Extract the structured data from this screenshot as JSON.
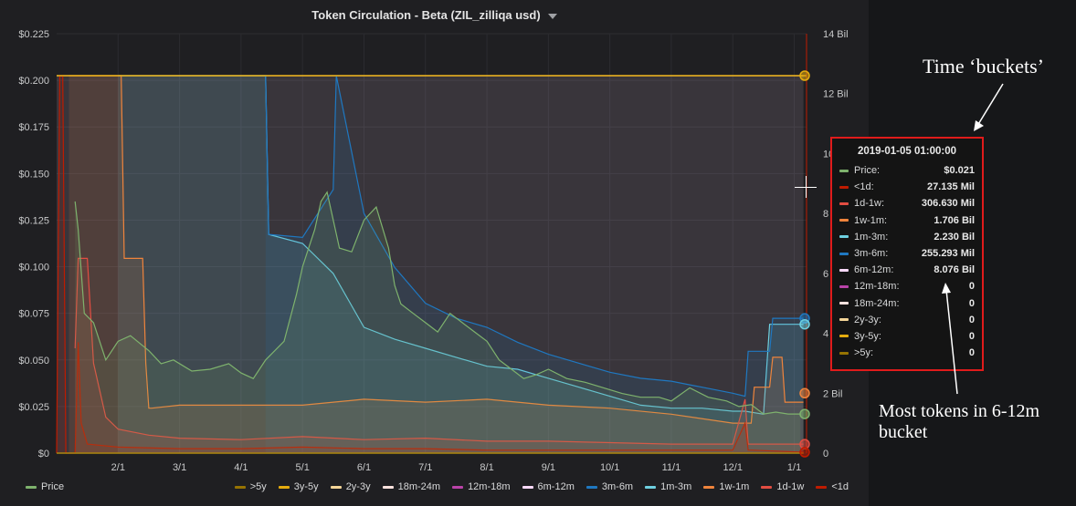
{
  "title": "Token Circulation - Beta (ZIL_zilliqa usd)",
  "colors": {
    "price": "#7eb26d",
    "lt1d": "#bf1b00",
    "d1w1": "#e24d42",
    "w1m1": "#ef843c",
    "m1m3": "#6ed0e0",
    "m3m6": "#1f78c1",
    "m6m12": "#f9d9f9",
    "m12m18": "#ba43a9",
    "m18m24": "#fce2de",
    "y2y3": "#f4d598",
    "y3y5": "#e5ac0e",
    "gt5y": "#967302"
  },
  "legend": {
    "left": [
      {
        "label": "Price",
        "color": "#7eb26d"
      }
    ],
    "right": [
      {
        "label": ">5y",
        "color": "#967302"
      },
      {
        "label": "3y-5y",
        "color": "#e5ac0e"
      },
      {
        "label": "2y-3y",
        "color": "#f4d598"
      },
      {
        "label": "18m-24m",
        "color": "#fce2de"
      },
      {
        "label": "12m-18m",
        "color": "#ba43a9"
      },
      {
        "label": "6m-12m",
        "color": "#f9d9f9"
      },
      {
        "label": "3m-6m",
        "color": "#1f78c1"
      },
      {
        "label": "1m-3m",
        "color": "#6ed0e0"
      },
      {
        "label": "1w-1m",
        "color": "#ef843c"
      },
      {
        "label": "1d-1w",
        "color": "#e24d42"
      },
      {
        "label": "<1d",
        "color": "#bf1b00"
      }
    ]
  },
  "tooltip": {
    "title": "2019-01-05 01:00:00",
    "rows": [
      {
        "label": "Price:",
        "value": "$0.021",
        "color": "#7eb26d"
      },
      {
        "label": "<1d:",
        "value": "27.135 Mil",
        "color": "#bf1b00"
      },
      {
        "label": "1d-1w:",
        "value": "306.630 Mil",
        "color": "#e24d42"
      },
      {
        "label": "1w-1m:",
        "value": "1.706 Bil",
        "color": "#ef843c"
      },
      {
        "label": "1m-3m:",
        "value": "2.230 Bil",
        "color": "#6ed0e0"
      },
      {
        "label": "3m-6m:",
        "value": "255.293 Mil",
        "color": "#1f78c1"
      },
      {
        "label": "6m-12m:",
        "value": "8.076 Bil",
        "color": "#f9d9f9"
      },
      {
        "label": "12m-18m:",
        "value": "0",
        "color": "#ba43a9"
      },
      {
        "label": "18m-24m:",
        "value": "0",
        "color": "#fce2de"
      },
      {
        "label": "2y-3y:",
        "value": "0",
        "color": "#f4d598"
      },
      {
        "label": "3y-5y:",
        "value": "0",
        "color": "#e5ac0e"
      },
      {
        "label": ">5y:",
        "value": "0",
        "color": "#967302"
      }
    ]
  },
  "annotations": {
    "top": "Time ‘buckets’",
    "bottom": "Most tokens in 6-12m bucket"
  },
  "chart_data": {
    "type": "line",
    "title": "Token Circulation - Beta (ZIL_zilliqa usd)",
    "xlabel": "",
    "ylabel": "",
    "y2label": "",
    "x_ticks": [
      "2/1",
      "3/1",
      "4/1",
      "5/1",
      "6/1",
      "7/1",
      "8/1",
      "9/1",
      "10/1",
      "11/1",
      "12/1",
      "1/1"
    ],
    "y_ticks": [
      "$0",
      "$0.025",
      "$0.050",
      "$0.075",
      "$0.100",
      "$0.125",
      "$0.150",
      "$0.175",
      "$0.200",
      "$0.225"
    ],
    "y2_ticks": [
      "0",
      "2 Bil",
      "4",
      "6",
      "8",
      "10",
      "12 Bil",
      "14 Bil"
    ],
    "ylim": [
      0,
      0.225
    ],
    "y2lim": [
      0,
      14
    ],
    "xlim": [
      0,
      12.2
    ],
    "grid": true,
    "legend_position": "bottom",
    "series": [
      {
        "name": "Price",
        "axis": "left",
        "color": "#7eb26d",
        "fill": true,
        "x": [
          0.3,
          0.35,
          0.45,
          0.6,
          0.8,
          1.0,
          1.2,
          1.5,
          1.7,
          1.9,
          2.2,
          2.5,
          2.8,
          3.0,
          3.2,
          3.4,
          3.7,
          3.9,
          4.0,
          4.1,
          4.2,
          4.3,
          4.4,
          4.6,
          4.8,
          5.0,
          5.2,
          5.4,
          5.5,
          5.6,
          5.8,
          6.0,
          6.2,
          6.4,
          6.6,
          6.8,
          7.0,
          7.2,
          7.4,
          7.6,
          7.8,
          8.0,
          8.3,
          8.6,
          8.9,
          9.2,
          9.5,
          9.8,
          10.0,
          10.3,
          10.6,
          10.9,
          11.1,
          11.3,
          11.5,
          11.7,
          11.9,
          12.1
        ],
        "y": [
          0.135,
          0.12,
          0.075,
          0.07,
          0.05,
          0.06,
          0.063,
          0.055,
          0.048,
          0.05,
          0.044,
          0.045,
          0.048,
          0.043,
          0.04,
          0.05,
          0.06,
          0.085,
          0.1,
          0.11,
          0.12,
          0.135,
          0.14,
          0.11,
          0.108,
          0.125,
          0.132,
          0.11,
          0.09,
          0.08,
          0.075,
          0.07,
          0.065,
          0.075,
          0.07,
          0.065,
          0.06,
          0.05,
          0.045,
          0.04,
          0.042,
          0.045,
          0.04,
          0.038,
          0.035,
          0.032,
          0.03,
          0.03,
          0.028,
          0.035,
          0.03,
          0.028,
          0.025,
          0.026,
          0.021,
          0.022,
          0.021,
          0.021
        ]
      },
      {
        "name": "6m-12m",
        "axis": "right",
        "color": "#f9d9f9",
        "fill": true,
        "x": [
          0.0,
          12.15
        ],
        "y": [
          12.6,
          12.6
        ]
      },
      {
        "name": "1m-3m",
        "axis": "right",
        "color": "#6ed0e0",
        "fill": true,
        "x": [
          1.0,
          1.05,
          3.4,
          3.45,
          4.0,
          4.5,
          5.0,
          5.5,
          6.0,
          6.5,
          7.0,
          7.5,
          8.0,
          8.5,
          9.0,
          9.5,
          10.0,
          10.5,
          11.0,
          11.2,
          11.5,
          11.6,
          12.0,
          12.15
        ],
        "y": [
          12.6,
          12.6,
          12.6,
          7.3,
          7.0,
          6.0,
          4.2,
          3.8,
          3.5,
          3.2,
          2.9,
          2.8,
          2.5,
          2.2,
          1.9,
          1.6,
          1.5,
          1.5,
          1.4,
          1.4,
          1.3,
          4.3,
          4.3,
          4.3
        ]
      },
      {
        "name": "3m-6m",
        "axis": "right",
        "color": "#1f78c1",
        "fill": true,
        "x": [
          3.4,
          3.45,
          4.0,
          4.5,
          4.55,
          5.0,
          5.5,
          6.0,
          6.5,
          7.0,
          7.5,
          8.0,
          8.5,
          9.0,
          9.5,
          10.0,
          10.5,
          11.0,
          11.2,
          11.25,
          11.6,
          11.65,
          12.15
        ],
        "y": [
          12.6,
          7.3,
          7.2,
          8.8,
          12.6,
          8.0,
          6.2,
          5.0,
          4.5,
          4.2,
          3.7,
          3.3,
          3.0,
          2.7,
          2.5,
          2.4,
          2.2,
          2.0,
          1.9,
          3.4,
          3.4,
          4.5,
          4.5
        ]
      },
      {
        "name": "1w-1m",
        "axis": "right",
        "color": "#ef843c",
        "fill": true,
        "x": [
          0.2,
          0.25,
          1.05,
          1.1,
          1.4,
          1.45,
          1.5,
          1.55,
          2.0,
          3.0,
          4.0,
          5.0,
          6.0,
          7.0,
          8.0,
          9.0,
          10.0,
          11.0,
          11.3,
          11.35,
          11.6,
          11.65,
          11.8,
          11.85,
          12.15
        ],
        "y": [
          12.6,
          12.6,
          12.6,
          6.5,
          6.5,
          3.0,
          1.5,
          1.5,
          1.6,
          1.6,
          1.6,
          1.8,
          1.7,
          1.8,
          1.6,
          1.5,
          1.3,
          1.0,
          1.0,
          2.2,
          2.2,
          3.2,
          3.2,
          1.7,
          1.7
        ]
      },
      {
        "name": "1d-1w",
        "axis": "right",
        "color": "#e24d42",
        "fill": true,
        "x": [
          0.3,
          0.35,
          0.5,
          0.6,
          0.8,
          1.0,
          1.5,
          2.0,
          3.0,
          4.0,
          5.0,
          6.0,
          7.0,
          8.0,
          9.0,
          10.0,
          11.0,
          11.2,
          11.25,
          11.5,
          11.55,
          12.15
        ],
        "y": [
          3.5,
          6.5,
          6.5,
          3.0,
          1.2,
          0.8,
          0.6,
          0.5,
          0.45,
          0.55,
          0.45,
          0.5,
          0.4,
          0.4,
          0.35,
          0.3,
          0.3,
          1.8,
          0.3,
          0.3,
          0.3,
          0.3
        ]
      },
      {
        "name": "<1d",
        "axis": "right",
        "color": "#bf1b00",
        "fill": true,
        "x": [
          0.0,
          0.05,
          0.1,
          0.15,
          0.3,
          0.35,
          0.4,
          0.5,
          1.0,
          2.0,
          3.0,
          4.0,
          5.0,
          6.0,
          7.0,
          8.0,
          9.0,
          10.0,
          11.0,
          11.2,
          11.25,
          11.3,
          12.15
        ],
        "y": [
          0.0,
          12.6,
          12.6,
          0.0,
          0.0,
          3.7,
          1.0,
          0.3,
          0.2,
          0.15,
          0.15,
          0.2,
          0.15,
          0.15,
          0.1,
          0.1,
          0.1,
          0.1,
          0.1,
          1.0,
          0.1,
          0.1,
          0.03
        ]
      },
      {
        "name": "2y-3y",
        "axis": "right",
        "color": "#f4d598",
        "fill": false,
        "x": [
          0.0,
          12.15
        ],
        "y": [
          0,
          0
        ]
      },
      {
        "name": "3y-5y",
        "axis": "right",
        "color": "#e5ac0e",
        "fill": false,
        "x": [
          0.0,
          12.15
        ],
        "y": [
          0,
          0
        ]
      },
      {
        "name": ">5y",
        "axis": "right",
        "color": "#967302",
        "fill": false,
        "x": [
          0.0,
          12.15
        ],
        "y": [
          0,
          0
        ]
      }
    ]
  }
}
